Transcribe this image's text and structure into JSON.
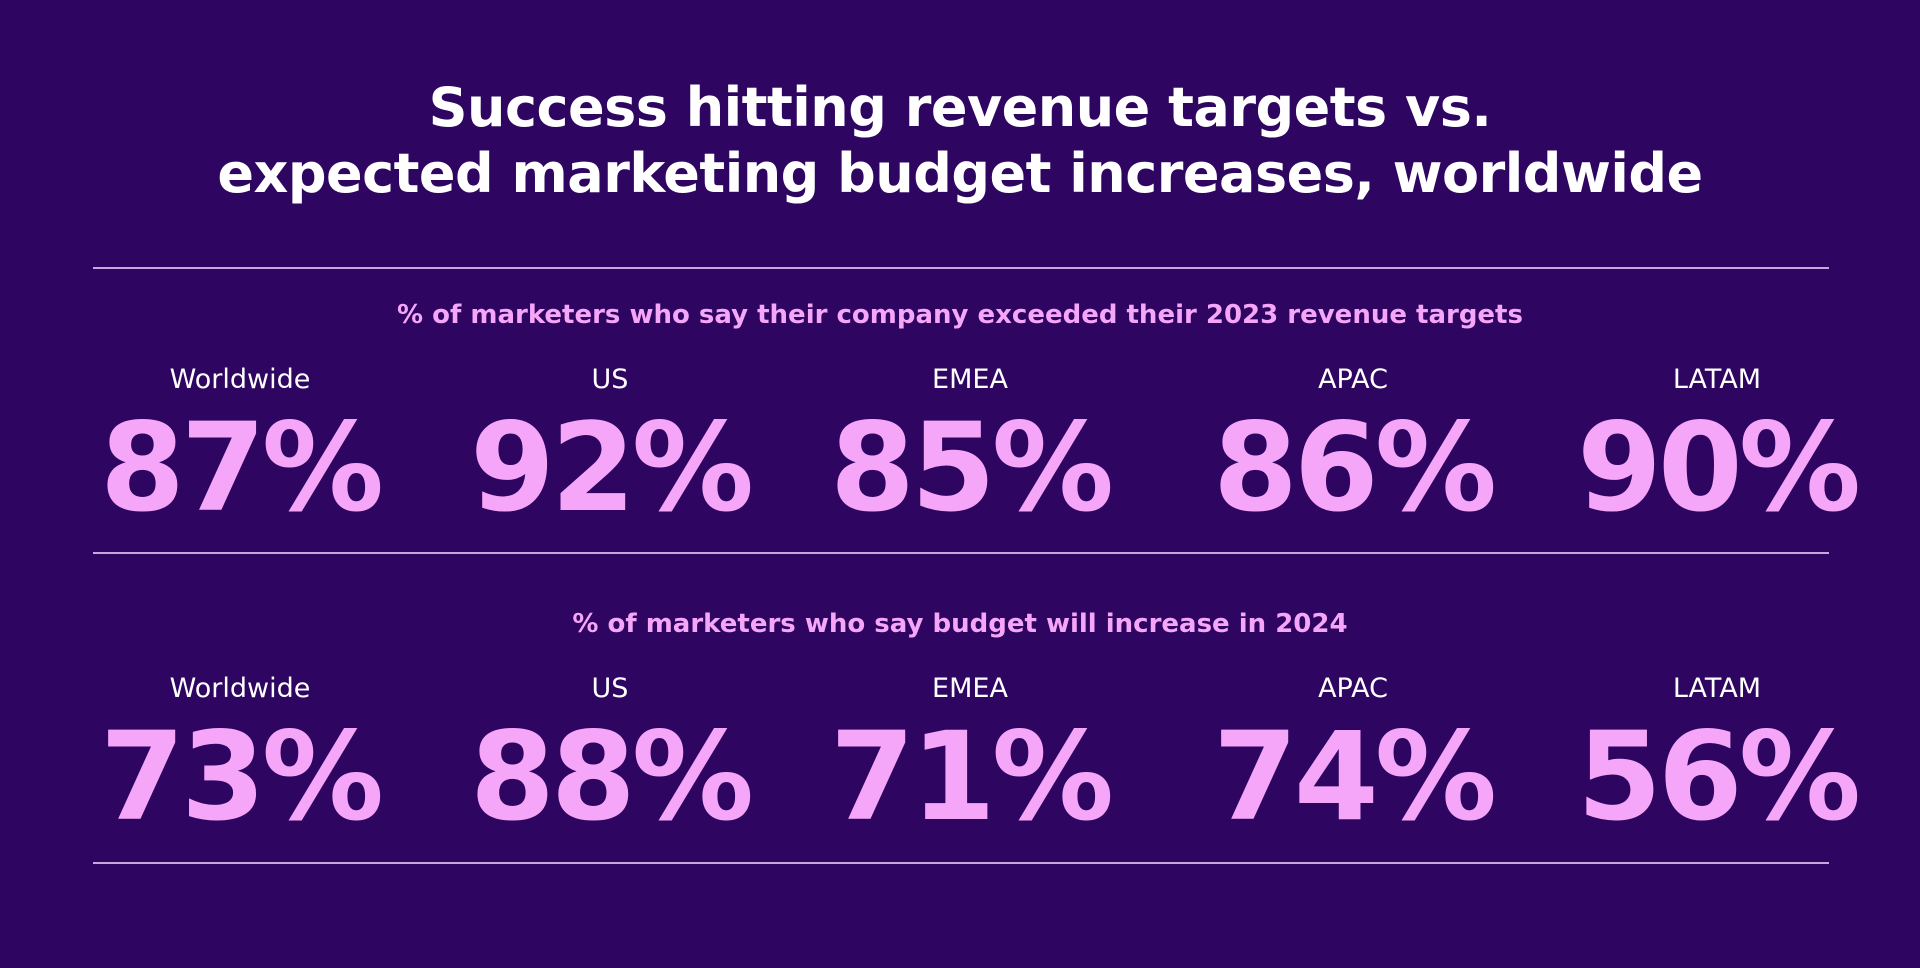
{
  "title": {
    "line1": "Success hitting revenue targets vs.",
    "line2": "expected marketing budget increases, worldwide"
  },
  "chart_data": {
    "type": "table",
    "title": "Success hitting revenue targets vs. expected marketing budget increases, worldwide",
    "regions": [
      "Worldwide",
      "US",
      "EMEA",
      "APAC",
      "LATAM"
    ],
    "sections": [
      {
        "subtitle": "% of marketers who say their company exceeded their 2023 revenue targets",
        "stats": [
          {
            "region": "Worldwide",
            "value": 87,
            "label": "87%"
          },
          {
            "region": "US",
            "value": 92,
            "label": "92%"
          },
          {
            "region": "EMEA",
            "value": 85,
            "label": "85%"
          },
          {
            "region": "APAC",
            "value": 86,
            "label": "86%"
          },
          {
            "region": "LATAM",
            "value": 90,
            "label": "90%"
          }
        ]
      },
      {
        "subtitle": "% of marketers who say budget will increase in 2024",
        "stats": [
          {
            "region": "Worldwide",
            "value": 73,
            "label": "73%"
          },
          {
            "region": "US",
            "value": 88,
            "label": "88%"
          },
          {
            "region": "EMEA",
            "value": 71,
            "label": "71%"
          },
          {
            "region": "APAC",
            "value": 74,
            "label": "74%"
          },
          {
            "region": "LATAM",
            "value": 56,
            "label": "56%"
          }
        ]
      }
    ]
  },
  "colors": {
    "background": "#2e0560",
    "accent": "#f6a6f8",
    "text": "#ffffff",
    "rule": "#c9a6e0"
  }
}
